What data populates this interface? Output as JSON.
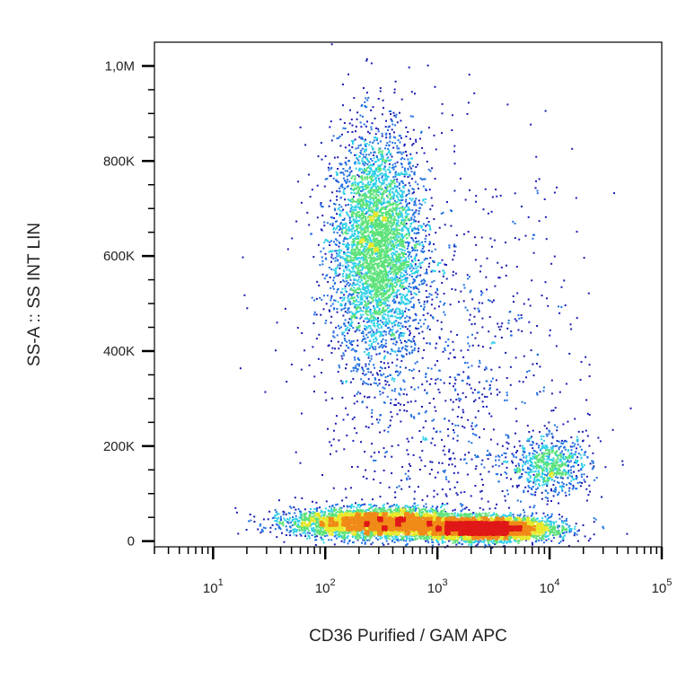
{
  "chart_data": {
    "type": "scatter",
    "title": "",
    "xlabel": "CD36 Purified / GAM APC",
    "ylabel": "SS-A :: SS INT LIN",
    "x_scale": "log",
    "y_scale": "linear",
    "xlim": [
      3,
      100000
    ],
    "ylim": [
      -12000,
      1050000
    ],
    "x_ticks": [
      {
        "value": 10,
        "base": "10",
        "exp": "1"
      },
      {
        "value": 100,
        "base": "10",
        "exp": "2"
      },
      {
        "value": 1000,
        "base": "10",
        "exp": "3"
      },
      {
        "value": 10000,
        "base": "10",
        "exp": "4"
      },
      {
        "value": 100000,
        "base": "10",
        "exp": "5"
      }
    ],
    "y_ticks": [
      {
        "value": 0,
        "label": "0"
      },
      {
        "value": 200000,
        "label": "200K"
      },
      {
        "value": 400000,
        "label": "400K"
      },
      {
        "value": 600000,
        "label": "600K"
      },
      {
        "value": 800000,
        "label": "800K"
      },
      {
        "value": 1000000,
        "label": "1,0M"
      }
    ],
    "density_colormap": [
      "#1a1ab4",
      "#1f6fe0",
      "#2fd0e8",
      "#5de27a",
      "#e8e82a",
      "#f08a18",
      "#e01818"
    ],
    "grid": false,
    "legend": "none",
    "populations": [
      {
        "x_center": 280,
        "x_spread_decades": 0.2,
        "y_center": 620000,
        "y_spread": 120000,
        "points": 4200
      },
      {
        "x_center": 10000,
        "x_spread_decades": 0.18,
        "y_center": 160000,
        "y_spread": 30000,
        "points": 700
      },
      {
        "x_center": 300,
        "x_spread_decades": 0.38,
        "y_center": 40000,
        "y_spread": 15000,
        "points": 4500
      },
      {
        "x_center": 2500,
        "x_spread_decades": 0.3,
        "y_center": 28000,
        "y_spread": 12000,
        "points": 5200
      },
      {
        "x_center": 1200,
        "x_spread_decades": 0.6,
        "y_center": 300000,
        "y_spread": 250000,
        "points": 1200
      }
    ]
  }
}
